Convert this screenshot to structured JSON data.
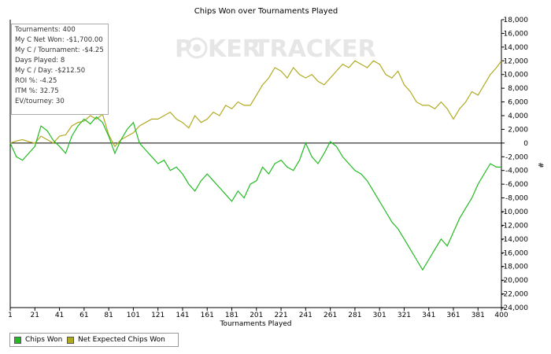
{
  "stats": [
    "Tournaments: 400",
    "My C Net Won: -$1,700.00",
    "My C / Tournament: -$4.25",
    "Days Played: 8",
    "My C / Day: -$212.50",
    "ROI %: -4.25",
    "ITM %: 32.75",
    "EV/tourney: 30"
  ],
  "watermark": {
    "left": "P",
    "mid": "KER",
    "right": "TRACKER"
  },
  "colors": {
    "chips_won": "#22bb22",
    "net_expected": "#b0aa20",
    "axis": "#000000",
    "watermark": "#e6e6e6"
  },
  "chart_data": {
    "type": "line",
    "title": "Chips Won over Tournaments Played",
    "xlabel": "Tournaments Played",
    "ylabel": "#",
    "xlim": [
      1,
      400
    ],
    "ylim": [
      -24000,
      18000
    ],
    "x_ticks": [
      1,
      21,
      41,
      61,
      81,
      101,
      121,
      141,
      161,
      181,
      201,
      221,
      241,
      261,
      281,
      301,
      321,
      341,
      361,
      381,
      400
    ],
    "y_ticks": [
      18000,
      16000,
      14000,
      12000,
      10000,
      8000,
      6000,
      4000,
      2000,
      0,
      -2000,
      -4000,
      -6000,
      -8000,
      -10000,
      -12000,
      -14000,
      -16000,
      -18000,
      -20000,
      -22000,
      -24000
    ],
    "y_tick_labels": [
      "18,000",
      "16,000",
      "14,000",
      "12,000",
      "10,000",
      "8,000",
      "6,000",
      "4,000",
      "2,000",
      "0",
      "-2,000",
      "-4,000",
      "-6,000",
      "-8,000",
      "-10,000",
      "-12,000",
      "-14,000",
      "-16,000",
      "-18,000",
      "-20,000",
      "-22,000",
      "-24,000"
    ],
    "series": [
      {
        "name": "Chips Won",
        "color": "#22bb22",
        "x": [
          1,
          6,
          11,
          16,
          21,
          26,
          31,
          36,
          41,
          46,
          51,
          56,
          61,
          66,
          71,
          76,
          81,
          86,
          91,
          96,
          101,
          106,
          111,
          116,
          121,
          126,
          131,
          136,
          141,
          146,
          151,
          156,
          161,
          166,
          171,
          176,
          181,
          186,
          191,
          196,
          201,
          206,
          211,
          216,
          221,
          226,
          231,
          236,
          241,
          246,
          251,
          256,
          261,
          266,
          271,
          276,
          281,
          286,
          291,
          296,
          301,
          306,
          311,
          316,
          321,
          326,
          331,
          336,
          341,
          346,
          351,
          356,
          361,
          366,
          371,
          376,
          381,
          386,
          391,
          396,
          400
        ],
        "y": [
          0,
          -2000,
          -2500,
          -1500,
          -500,
          2500,
          1800,
          400,
          -500,
          -1500,
          1000,
          2500,
          3500,
          2800,
          3800,
          3000,
          1000,
          -1500,
          500,
          2000,
          3000,
          0,
          -1000,
          -2000,
          -3000,
          -2500,
          -4000,
          -3500,
          -4500,
          -6000,
          -7000,
          -5500,
          -4500,
          -5500,
          -6500,
          -7500,
          -8500,
          -7000,
          -8000,
          -6000,
          -5500,
          -3500,
          -4500,
          -3000,
          -2500,
          -3500,
          -4000,
          -2500,
          0,
          -2000,
          -3000,
          -1500,
          200,
          -500,
          -2000,
          -3000,
          -4000,
          -4500,
          -5500,
          -7000,
          -8500,
          -10000,
          -11500,
          -12500,
          -14000,
          -15500,
          -17000,
          -18500,
          -17000,
          -15500,
          -14000,
          -15000,
          -13000,
          -11000,
          -9500,
          -8000,
          -6000,
          -4500,
          -3000,
          -3500,
          -3500
        ]
      },
      {
        "name": "Net Expected Chips Won",
        "color": "#b0aa20",
        "x": [
          1,
          6,
          11,
          16,
          21,
          26,
          31,
          36,
          41,
          46,
          51,
          56,
          61,
          66,
          71,
          76,
          81,
          86,
          91,
          96,
          101,
          106,
          111,
          116,
          121,
          126,
          131,
          136,
          141,
          146,
          151,
          156,
          161,
          166,
          171,
          176,
          181,
          186,
          191,
          196,
          201,
          206,
          211,
          216,
          221,
          226,
          231,
          236,
          241,
          246,
          251,
          256,
          261,
          266,
          271,
          276,
          281,
          286,
          291,
          296,
          301,
          306,
          311,
          316,
          321,
          326,
          331,
          336,
          341,
          346,
          351,
          356,
          361,
          366,
          371,
          376,
          381,
          386,
          391,
          396,
          400
        ],
        "y": [
          0,
          300,
          500,
          200,
          0,
          1000,
          500,
          0,
          1000,
          1200,
          2500,
          3000,
          3200,
          4000,
          3500,
          4200,
          1200,
          -500,
          500,
          1000,
          1500,
          2500,
          3000,
          3500,
          3500,
          4000,
          4500,
          3500,
          3000,
          2200,
          4000,
          3000,
          3500,
          4500,
          4000,
          5500,
          5000,
          6000,
          5500,
          5500,
          7000,
          8500,
          9500,
          11000,
          10500,
          9500,
          11000,
          10000,
          9500,
          10000,
          9000,
          8500,
          9500,
          10500,
          11500,
          11000,
          12000,
          11500,
          11000,
          12000,
          11500,
          10000,
          9500,
          10500,
          8500,
          7500,
          6000,
          5500,
          5500,
          5000,
          6000,
          5000,
          3500,
          5000,
          6000,
          7500,
          7000,
          8500,
          10000,
          11000,
          12000
        ]
      }
    ]
  }
}
